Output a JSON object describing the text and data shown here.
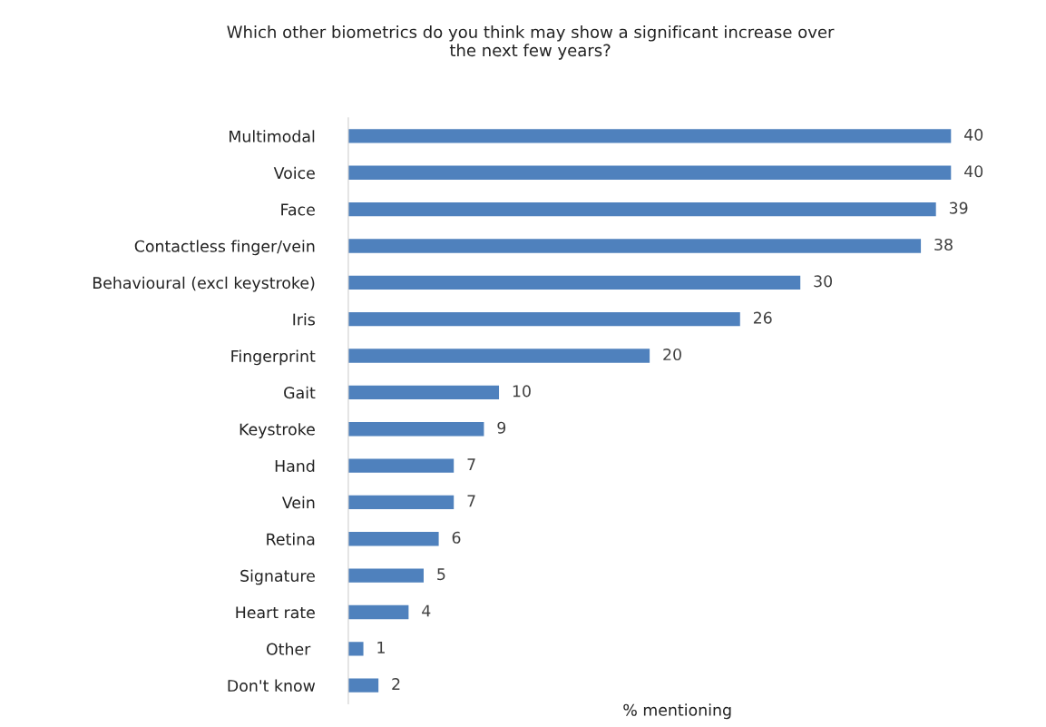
{
  "chart_data": {
    "type": "bar",
    "orientation": "horizontal",
    "title": "Which other biometrics do you think may show a significant increase over\nthe next few years?",
    "xlabel": "% mentioning",
    "categories": [
      "Multimodal",
      "Voice",
      "Face",
      "Contactless finger/vein",
      "Behavioural (excl keystroke)",
      "Iris",
      "Fingerprint",
      "Gait",
      "Keystroke",
      "Hand",
      "Vein",
      "Retina",
      "Signature",
      "Heart rate",
      "Other ",
      "Don't know"
    ],
    "values": [
      40,
      40,
      39,
      38,
      30,
      26,
      20,
      10,
      9,
      7,
      7,
      6,
      5,
      4,
      1,
      2
    ],
    "color": "#4f81bd",
    "data_labels": true,
    "tick_labels": "y",
    "grid": false,
    "legend": false
  }
}
